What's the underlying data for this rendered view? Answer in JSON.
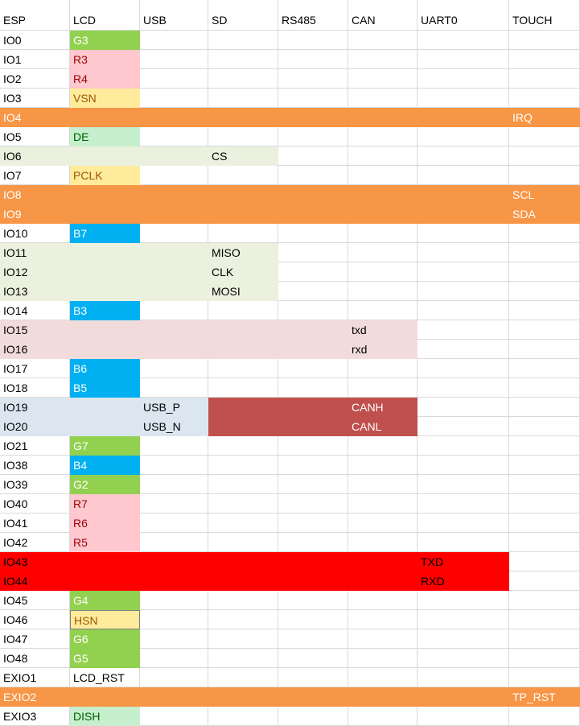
{
  "header": [
    "ESP",
    "LCD",
    "USB",
    "SD",
    "RS485",
    "CAN",
    "UART0",
    "TOUCH"
  ],
  "rows": [
    [
      "IO0",
      "G3",
      null,
      null,
      null,
      null,
      null,
      null
    ],
    [
      "IO1",
      "R3",
      null,
      null,
      null,
      null,
      null,
      null
    ],
    [
      "IO2",
      "R4",
      null,
      null,
      null,
      null,
      null,
      null
    ],
    [
      "IO3",
      "VSN",
      null,
      null,
      null,
      null,
      null,
      null
    ],
    [
      "IO4",
      null,
      null,
      null,
      null,
      null,
      null,
      "IRQ"
    ],
    [
      "IO5",
      "DE",
      null,
      null,
      null,
      null,
      null,
      null
    ],
    [
      "IO6",
      null,
      null,
      "CS",
      null,
      null,
      null,
      null
    ],
    [
      "IO7",
      "PCLK",
      null,
      null,
      null,
      null,
      null,
      null
    ],
    [
      "IO8",
      null,
      null,
      null,
      null,
      null,
      null,
      "SCL"
    ],
    [
      "IO9",
      null,
      null,
      null,
      null,
      null,
      null,
      "SDA"
    ],
    [
      "IO10",
      "B7",
      null,
      null,
      null,
      null,
      null,
      null
    ],
    [
      "IO11",
      null,
      null,
      "MISO",
      null,
      null,
      null,
      null
    ],
    [
      "IO12",
      null,
      null,
      "CLK",
      null,
      null,
      null,
      null
    ],
    [
      "IO13",
      null,
      null,
      "MOSI",
      null,
      null,
      null,
      null
    ],
    [
      "IO14",
      "B3",
      null,
      null,
      null,
      null,
      null,
      null
    ],
    [
      "IO15",
      null,
      null,
      null,
      null,
      "txd",
      null,
      null
    ],
    [
      "IO16",
      null,
      null,
      null,
      null,
      "rxd",
      null,
      null
    ],
    [
      "IO17",
      "B6",
      null,
      null,
      null,
      null,
      null,
      null
    ],
    [
      "IO18",
      "B5",
      null,
      null,
      null,
      null,
      null,
      null
    ],
    [
      "IO19",
      null,
      "USB_P",
      null,
      null,
      "CANH",
      null,
      null
    ],
    [
      "IO20",
      null,
      "USB_N",
      null,
      null,
      "CANL",
      null,
      null
    ],
    [
      "IO21",
      "G7",
      null,
      null,
      null,
      null,
      null,
      null
    ],
    [
      "IO38",
      "B4",
      null,
      null,
      null,
      null,
      null,
      null
    ],
    [
      "IO39",
      "G2",
      null,
      null,
      null,
      null,
      null,
      null
    ],
    [
      "IO40",
      "R7",
      null,
      null,
      null,
      null,
      null,
      null
    ],
    [
      "IO41",
      "R6",
      null,
      null,
      null,
      null,
      null,
      null
    ],
    [
      "IO42",
      "R5",
      null,
      null,
      null,
      null,
      null,
      null
    ],
    [
      "IO43",
      null,
      null,
      null,
      null,
      null,
      "TXD",
      null
    ],
    [
      "IO44",
      null,
      null,
      null,
      null,
      null,
      "RXD",
      null
    ],
    [
      "IO45",
      "G4",
      null,
      null,
      null,
      null,
      null,
      null
    ],
    [
      "IO46",
      "HSN",
      null,
      null,
      null,
      null,
      null,
      null
    ],
    [
      "IO47",
      "G6",
      null,
      null,
      null,
      null,
      null,
      null
    ],
    [
      "IO48",
      "G5",
      null,
      null,
      null,
      null,
      null,
      null
    ],
    [
      "EXIO1",
      "LCD_RST",
      null,
      null,
      null,
      null,
      null,
      null
    ],
    [
      "EXIO2",
      null,
      null,
      null,
      null,
      null,
      null,
      "TP_RST"
    ],
    [
      "EXIO3",
      "DISH",
      null,
      null,
      null,
      null,
      null,
      null
    ]
  ]
}
